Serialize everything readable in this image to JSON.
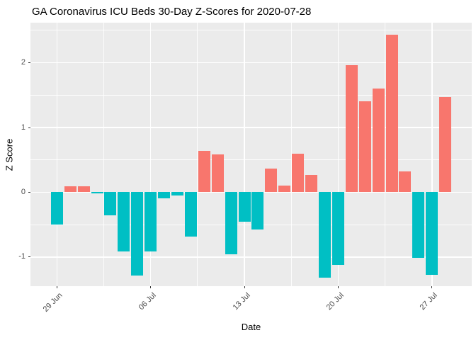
{
  "page": {
    "title": "GA Coronavirus ICU Beds 30-Day Z-Scores for 2020-07-28"
  },
  "chart_data": {
    "type": "bar",
    "title": "GA Coronavirus ICU Beds 30-Day Z-Scores for 2020-07-28",
    "xlabel": "Date",
    "ylabel": "Z Score",
    "categories": [
      "29 Jun",
      "30 Jun",
      "01 Jul",
      "02 Jul",
      "03 Jul",
      "04 Jul",
      "05 Jul",
      "06 Jul",
      "07 Jul",
      "08 Jul",
      "09 Jul",
      "10 Jul",
      "11 Jul",
      "12 Jul",
      "13 Jul",
      "14 Jul",
      "15 Jul",
      "16 Jul",
      "17 Jul",
      "18 Jul",
      "19 Jul",
      "20 Jul",
      "21 Jul",
      "22 Jul",
      "23 Jul",
      "24 Jul",
      "25 Jul",
      "26 Jul",
      "27 Jul",
      "28 Jul"
    ],
    "values": [
      -0.5,
      0.09,
      0.09,
      -0.02,
      -0.36,
      -0.91,
      -1.29,
      -0.91,
      -0.09,
      -0.05,
      -0.68,
      0.64,
      0.59,
      -0.96,
      -0.45,
      -0.58,
      0.37,
      0.1,
      0.6,
      0.27,
      -1.32,
      -1.12,
      1.96,
      1.41,
      1.6,
      2.43,
      0.32,
      -1.01,
      -1.28,
      1.47
    ],
    "x_tick_labels": [
      "29 Jun",
      "06 Jul",
      "13 Jul",
      "20 Jul",
      "27 Jul"
    ],
    "x_tick_indices": [
      0,
      7,
      14,
      21,
      28
    ],
    "x_minor_indices": [
      3.5,
      10.5,
      17.5,
      24.5
    ],
    "y_ticks": [
      -1,
      0,
      1,
      2
    ],
    "y_tick_labels": [
      "-1",
      "0",
      "1",
      "2"
    ],
    "y_minor_ticks": [
      -1.5,
      -0.5,
      0.5,
      1.5,
      2.5
    ],
    "ylim": [
      -1.45,
      2.62
    ],
    "grid": true,
    "legend": "none",
    "colors": {
      "positive": "#F8766D",
      "negative": "#00BFC4",
      "panel_bg": "#EBEBEB",
      "grid": "#FFFFFF",
      "axis_text": "#4D4D4D",
      "tick_mark": "#333333",
      "title_text": "#000000"
    }
  }
}
